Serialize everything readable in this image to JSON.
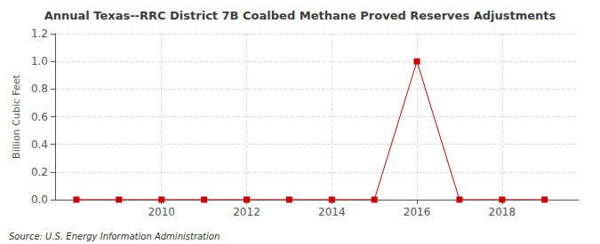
{
  "chart_data": {
    "type": "line",
    "title": "Annual Texas--RRC District 7B Coalbed Methane Proved Reserves Adjustments",
    "y_label": "Billion Cubic Feet",
    "annotations": [
      "Source: U.S. Energy Information Administration"
    ],
    "x": [
      2008,
      2009,
      2010,
      2011,
      2012,
      2013,
      2014,
      2015,
      2016,
      2017,
      2018,
      2019
    ],
    "values": [
      0.0,
      0.0,
      0.0,
      0.0,
      0.0,
      0.0,
      0.0,
      0.0,
      1.0,
      0.0,
      0.0,
      0.0
    ],
    "color": "#cc0000",
    "marker": "square",
    "line_style": "solid",
    "xlim": [
      2007.5,
      2019.8
    ],
    "xticks": [
      2010,
      2012,
      2014,
      2016,
      2018
    ],
    "ylim": [
      0.0,
      1.2
    ],
    "yticks": [
      {
        "value": 0.0,
        "label": "0.0"
      },
      0.2,
      0.4,
      0.6,
      0.8,
      {
        "value": 1.0,
        "label": "1.0"
      },
      1.2
    ],
    "grid": true
  }
}
